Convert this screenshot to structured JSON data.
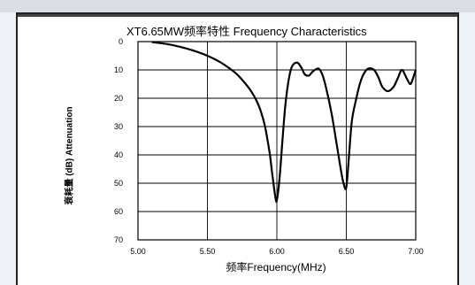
{
  "chart_data": {
    "type": "line",
    "title": "XT6.65MW频率特性  Frequency Characteristics",
    "xlabel": "频率Frequency(MHz)",
    "ylabel": "衰耗量 (dB) Attenuation",
    "xlim": [
      5.0,
      7.0
    ],
    "ylim": [
      0,
      70
    ],
    "y_inverted": true,
    "grid": true,
    "xticks": [
      "5.00",
      "5.50",
      "6.00",
      "6.50",
      "7.00"
    ],
    "yticks": [
      "0",
      "10",
      "20",
      "30",
      "40",
      "50",
      "60",
      "70"
    ],
    "series": [
      {
        "name": "",
        "x": [
          5.1,
          5.2,
          5.3,
          5.4,
          5.5,
          5.6,
          5.7,
          5.75,
          5.8,
          5.85,
          5.88,
          5.91,
          5.93,
          5.95,
          5.97,
          5.99,
          6.0,
          6.02,
          6.04,
          6.06,
          6.08,
          6.1,
          6.12,
          6.15,
          6.18,
          6.2,
          6.23,
          6.26,
          6.3,
          6.33,
          6.36,
          6.4,
          6.43,
          6.46,
          6.48,
          6.5,
          6.52,
          6.54,
          6.57,
          6.6,
          6.63,
          6.66,
          6.7,
          6.73,
          6.76,
          6.8,
          6.84,
          6.87,
          6.9,
          6.93,
          6.96,
          6.98,
          7.0
        ],
        "y": [
          0.2,
          0.8,
          1.8,
          3.2,
          5.0,
          7.5,
          11.0,
          13.5,
          16.5,
          20.5,
          24.0,
          29.0,
          34.0,
          40.0,
          48.0,
          55.0,
          56.0,
          48.0,
          35.0,
          23.0,
          15.0,
          10.0,
          8.0,
          7.5,
          9.5,
          11.5,
          12.0,
          10.5,
          9.5,
          12.0,
          17.5,
          27.0,
          36.0,
          45.0,
          50.0,
          51.5,
          40.0,
          28.0,
          20.5,
          14.5,
          11.0,
          9.5,
          10.0,
          12.5,
          16.0,
          17.5,
          16.0,
          13.0,
          10.0,
          12.5,
          15.0,
          13.0,
          10.0
        ]
      }
    ]
  }
}
